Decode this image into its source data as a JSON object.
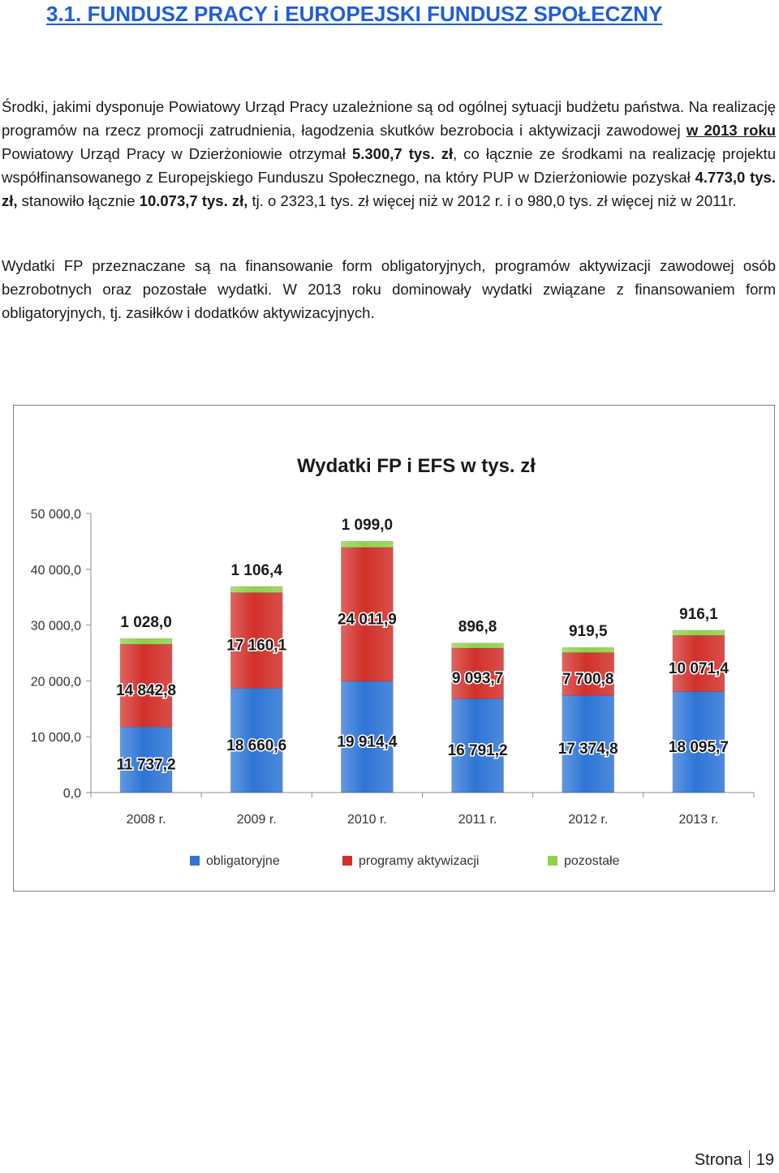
{
  "heading": "3.1. FUNDUSZ PRACY i EUROPEJSKI FUNDUSZ SPOŁECZNY",
  "paragraph1": {
    "t1": "Środki, jakimi dysponuje Powiatowy Urząd Pracy uzależnione są od ogólnej sytuacji budżetu państwa. Na realizację programów na rzecz promocji zatrudnienia, łagodzenia skutków bezrobocia i aktywizacji zawodowej ",
    "t2": "w 2013 roku",
    "t3": " Powiatowy Urząd Pracy w Dzierżoniowie otrzymał ",
    "t4": "5.300,7 tys. zł",
    "t5": ", co łącznie ze środkami na realizację projektu współfinansowanego z Europejskiego Funduszu Społecznego, na który PUP w Dzierżoniowie pozyskał ",
    "t6": "4.773,0 tys. zł,",
    "t7": " stanowiło łącznie ",
    "t8": "10.073,7 tys. zł,",
    "t9": " tj. o 2323,1 tys. zł więcej niż w 2012 r.  i o 980,0 tys. zł więcej niż w 2011r."
  },
  "paragraph2": "Wydatki FP przeznaczane są na finansowanie form obligatoryjnych, programów aktywizacji zawodowej osób bezrobotnych oraz pozostałe wydatki. W 2013 roku dominowały wydatki związane z finansowaniem form obligatoryjnych, tj. zasiłków i dodatków aktywizacyjnych.",
  "chart_data": {
    "type": "bar",
    "stacked": true,
    "title": "Wydatki FP i EFS w tys. zł",
    "categories": [
      "2008 r.",
      "2009 r.",
      "2010 r.",
      "2011 r.",
      "2012 r.",
      "2013 r."
    ],
    "series": [
      {
        "name": "obligatoryjne",
        "color": "#2e75d6",
        "values": [
          11737.2,
          18660.6,
          19914.4,
          16791.2,
          17374.8,
          18095.7
        ],
        "labels": [
          "11 737,2",
          "18 660,6",
          "19 914,4",
          "16 791,2",
          "17 374,8",
          "18 095,7"
        ]
      },
      {
        "name": "programy aktywizacji",
        "color": "#d2302a",
        "values": [
          14842.8,
          17160.1,
          24011.9,
          9093.7,
          7700.8,
          10071.4
        ],
        "labels": [
          "14 842,8",
          "17 160,1",
          "24 011,9",
          "9 093,7",
          "7 700,8",
          "10 071,4"
        ]
      },
      {
        "name": "pozostałe",
        "color": "#8fd14a",
        "values": [
          1028.0,
          1106.4,
          1099.0,
          896.8,
          919.5,
          916.1
        ],
        "labels": [
          "1 028,0",
          "1 106,4",
          "1 099,0",
          "896,8",
          "919,5",
          "916,1"
        ]
      }
    ],
    "ylim": [
      0,
      50000
    ],
    "yticks": [
      0,
      10000,
      20000,
      30000,
      40000,
      50000
    ],
    "ytick_labels": [
      "0,0",
      "10 000,0",
      "20 000,0",
      "30 000,0",
      "40 000,0",
      "50 000,0"
    ],
    "grid": false,
    "legend_position": "bottom"
  },
  "footer": {
    "label": "Strona",
    "page": "19"
  }
}
